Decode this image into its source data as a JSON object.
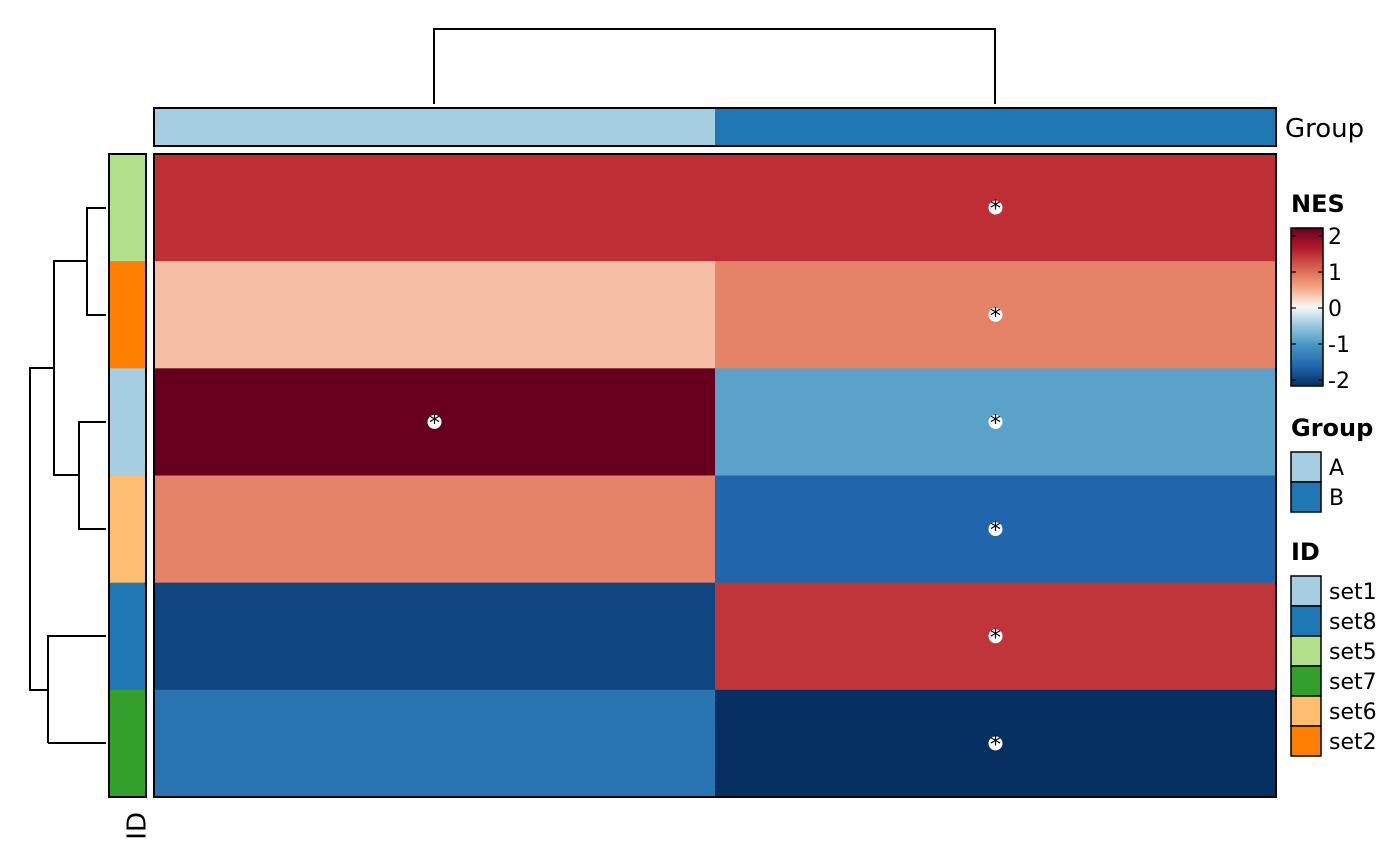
{
  "chart_data": {
    "type": "heatmap",
    "columns": [
      "A",
      "B"
    ],
    "rows": [
      "set5",
      "set2",
      "set1",
      "set6",
      "set8",
      "set7"
    ],
    "values": [
      [
        1.35,
        1.35
      ],
      [
        0.35,
        0.75
      ],
      [
        2.3,
        -0.85
      ],
      [
        0.75,
        -1.5
      ],
      [
        -1.8,
        1.3
      ],
      [
        -1.35,
        -2.1
      ]
    ],
    "significant": [
      [
        false,
        true
      ],
      [
        false,
        true
      ],
      [
        true,
        true
      ],
      [
        false,
        true
      ],
      [
        false,
        true
      ],
      [
        false,
        true
      ]
    ],
    "significance_marker": "*",
    "column_annotation": {
      "name": "Group",
      "values": [
        "A",
        "B"
      ]
    },
    "row_annotation": {
      "name": "ID",
      "values": [
        "set5",
        "set2",
        "set1",
        "set6",
        "set8",
        "set7"
      ]
    },
    "row_dendrogram": "((set5,set2),(set1,set6)),(set8,set7)",
    "column_dendrogram": "(A,B)",
    "legends": {
      "nes": {
        "title": "NES",
        "ticks": [
          2,
          1,
          0,
          -1,
          -2
        ],
        "range": [
          -2,
          2
        ],
        "stops": [
          "#053061",
          "#2166ac",
          "#4393c3",
          "#92c5de",
          "#f7f7f7",
          "#f4a582",
          "#d6604d",
          "#b2182b",
          "#67001f"
        ]
      },
      "group": {
        "title": "Group",
        "items": [
          {
            "label": "A",
            "color": "#a6cee3"
          },
          {
            "label": "B",
            "color": "#1f78b4"
          }
        ]
      },
      "id": {
        "title": "ID",
        "items": [
          {
            "label": "set1",
            "color": "#a6cee3"
          },
          {
            "label": "set8",
            "color": "#1f78b4"
          },
          {
            "label": "set5",
            "color": "#b2df8a"
          },
          {
            "label": "set7",
            "color": "#33a02c"
          },
          {
            "label": "set6",
            "color": "#fdbf6f"
          },
          {
            "label": "set2",
            "color": "#ff7f00"
          }
        ]
      }
    }
  }
}
